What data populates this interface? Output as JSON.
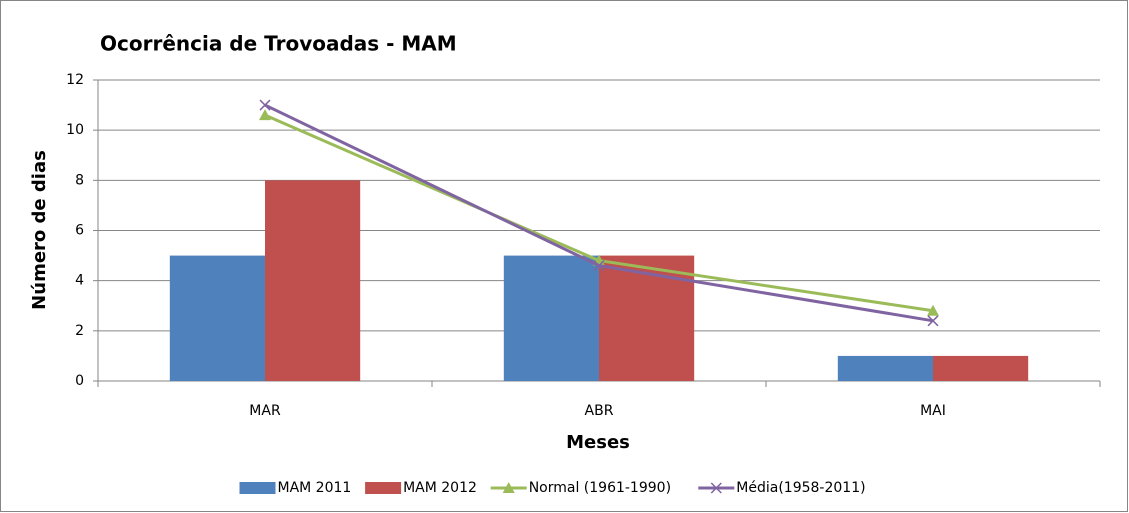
{
  "chart_data": {
    "type": "bar",
    "title": "Ocorrência de Trovoadas - MAM",
    "x_label": "Meses",
    "y_label": "Número de dias",
    "categories": [
      "MAR",
      "ABR",
      "MAI"
    ],
    "series": [
      {
        "name": "MAM 2011",
        "type": "bar",
        "color": "#4f81bd",
        "values": [
          5,
          5,
          1
        ]
      },
      {
        "name": "MAM 2012",
        "type": "bar",
        "color": "#c0504d",
        "values": [
          8,
          5,
          1
        ]
      },
      {
        "name": "Normal (1961-1990)",
        "type": "line",
        "marker": "triangle",
        "color": "#9bbb59",
        "values": [
          10.6,
          4.8,
          2.8
        ]
      },
      {
        "name": "Média(1958-2011)",
        "type": "line",
        "marker": "x",
        "color": "#8064a2",
        "values": [
          11,
          4.6,
          2.4
        ]
      }
    ],
    "ylim": [
      0,
      12
    ],
    "yticks": [
      0,
      2,
      4,
      6,
      8,
      10,
      12
    ],
    "grid": true,
    "legend": "bottom"
  }
}
